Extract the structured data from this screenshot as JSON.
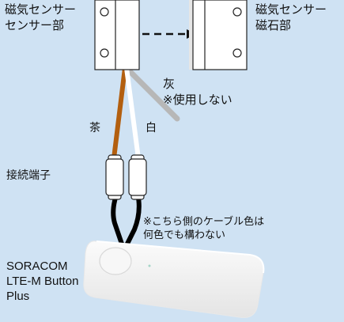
{
  "labels": {
    "sensor_main_line1": "磁気センサー",
    "sensor_main_line2": "センサー部",
    "sensor_magnet_line1": "磁気センサー",
    "sensor_magnet_line2": "磁石部",
    "gray_wire_line1": "灰",
    "gray_wire_line2": "※使用しない",
    "brown_wire": "茶",
    "white_wire": "白",
    "terminal": "接続端子",
    "cable_note_line1": "※こちら側のケーブル色は",
    "cable_note_line2": "何色でも構わない",
    "device_line1": "SORACOM",
    "device_line2": "LTE-M Button",
    "device_line3": "Plus"
  },
  "colors": {
    "background": "#cfe2f3",
    "brown_wire": "#b35f0f",
    "white_wire": "#ffffff",
    "gray_wire": "#b7b7b7",
    "black_wire": "#000000"
  }
}
